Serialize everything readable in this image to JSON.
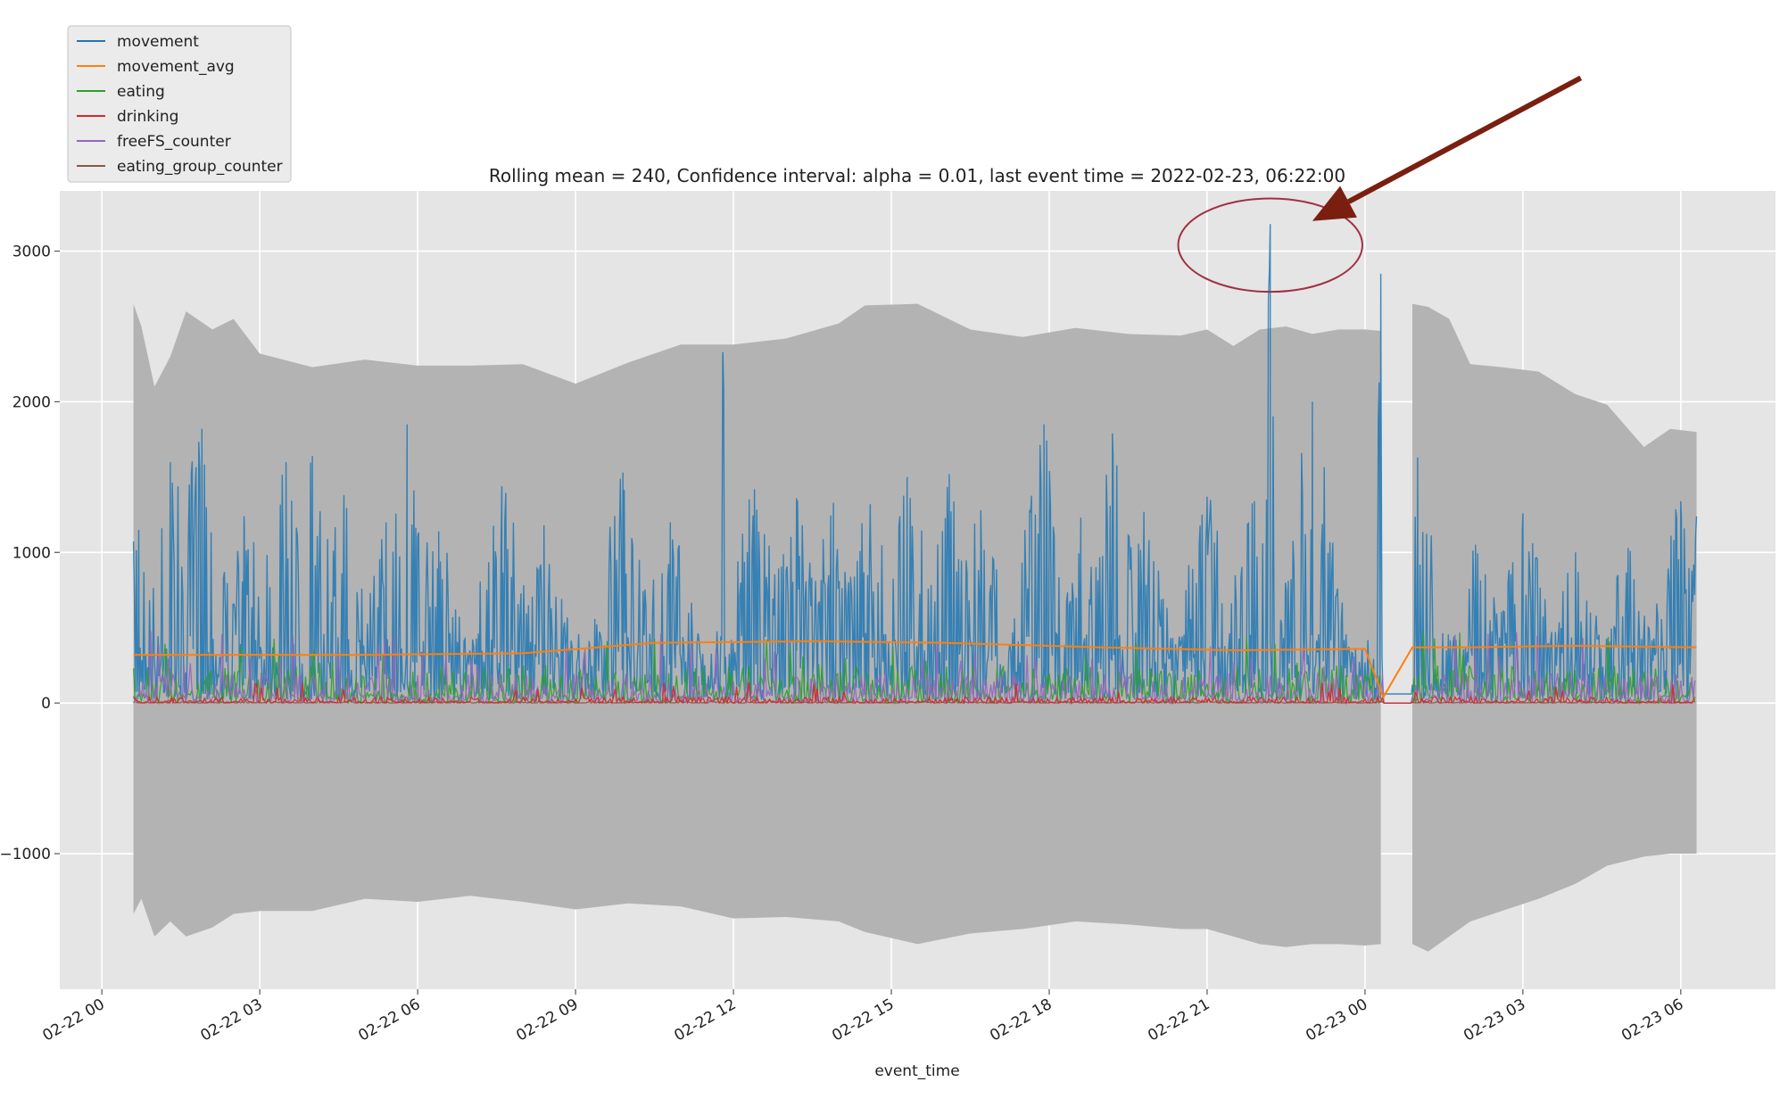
{
  "chart_data": {
    "type": "line",
    "title": "Rolling mean = 240, Confidence interval: alpha = 0.01, last event time = 2022-02-23, 06:22:00",
    "xlabel": "event_time",
    "ylabel": "",
    "x_ticks": [
      "02-22 00",
      "02-22 03",
      "02-22 06",
      "02-22 09",
      "02-22 12",
      "02-22 15",
      "02-22 18",
      "02-22 21",
      "02-23 00",
      "02-23 03",
      "02-23 06"
    ],
    "x_tick_hours": [
      0,
      3,
      6,
      9,
      12,
      15,
      18,
      21,
      24,
      27,
      30
    ],
    "xlim_hours": [
      -0.8,
      31.8
    ],
    "y_ticks": [
      3000,
      2000,
      1000,
      0,
      -1000
    ],
    "ylim": [
      -1900,
      3400
    ],
    "grid": true,
    "legend_position": "top-left, above plot",
    "series": [
      {
        "name": "movement",
        "color": "#1f77b4",
        "peaks": [
          [
            0.7,
            1150
          ],
          [
            1.3,
            1600
          ],
          [
            1.9,
            1820
          ],
          [
            2.7,
            1240
          ],
          [
            3.5,
            1600
          ],
          [
            4.0,
            1640
          ],
          [
            4.6,
            1380
          ],
          [
            5.4,
            1200
          ],
          [
            5.8,
            1850
          ],
          [
            6.4,
            1140
          ],
          [
            7.6,
            1440
          ],
          [
            8.4,
            1180
          ],
          [
            9.9,
            1530
          ],
          [
            10.8,
            1200
          ],
          [
            11.8,
            2330
          ],
          [
            12.4,
            1420
          ],
          [
            13.2,
            1360
          ],
          [
            13.9,
            1330
          ],
          [
            14.6,
            1320
          ],
          [
            15.3,
            1500
          ],
          [
            16.1,
            1520
          ],
          [
            16.7,
            1280
          ],
          [
            17.9,
            1850
          ],
          [
            18.6,
            1230
          ],
          [
            19.2,
            1790
          ],
          [
            19.8,
            1270
          ],
          [
            21.0,
            1370
          ],
          [
            21.9,
            1340
          ],
          [
            22.2,
            3180
          ],
          [
            23.0,
            2000
          ],
          [
            24.3,
            2850
          ],
          [
            25.0,
            1630
          ],
          [
            26.1,
            1050
          ],
          [
            27.0,
            1260
          ],
          [
            28.0,
            1000
          ],
          [
            29.0,
            1030
          ],
          [
            30.0,
            1340
          ],
          [
            30.3,
            1240
          ]
        ]
      },
      {
        "name": "movement_avg",
        "color": "#ff7f0e",
        "x": [
          0.6,
          2.5,
          5.0,
          8.0,
          10.5,
          13.5,
          16.0,
          19.0,
          21.5,
          24.0,
          24.35,
          24.9,
          26.0,
          28.0,
          30.3
        ],
        "y": [
          320,
          320,
          320,
          330,
          400,
          410,
          400,
          370,
          350,
          360,
          40,
          370,
          370,
          380,
          370
        ]
      },
      {
        "name": "eating",
        "color": "#2ca02c",
        "typical_max": 250,
        "max": 480
      },
      {
        "name": "drinking",
        "color": "#d62728",
        "typical_max": 40,
        "max": 140
      },
      {
        "name": "freeFS_counter",
        "color": "#9467bd",
        "typical_max": 200,
        "max": 480
      },
      {
        "name": "eating_group_counter",
        "color": "#8c564b",
        "typical_max": 10,
        "max": 30
      }
    ],
    "confidence_band": {
      "color": "#b3b3b3",
      "x": [
        0.6,
        0.75,
        1.0,
        1.3,
        1.6,
        2.1,
        2.5,
        3.0,
        4.0,
        5.0,
        6.0,
        7.0,
        8.0,
        9.0,
        10.0,
        11.0,
        12.0,
        13.0,
        14.0,
        14.5,
        15.5,
        16.5,
        17.5,
        18.5,
        19.5,
        20.5,
        21.0,
        21.5,
        22.0,
        22.5,
        23.0,
        23.5,
        24.0,
        24.3
      ],
      "upper": [
        2650,
        2500,
        2100,
        2300,
        2600,
        2480,
        2550,
        2320,
        2230,
        2280,
        2240,
        2240,
        2250,
        2120,
        2260,
        2380,
        2380,
        2420,
        2520,
        2640,
        2650,
        2480,
        2430,
        2490,
        2450,
        2440,
        2480,
        2370,
        2480,
        2500,
        2450,
        2480,
        2480,
        2470
      ],
      "lower": [
        -1400,
        -1300,
        -1550,
        -1450,
        -1550,
        -1490,
        -1400,
        -1380,
        -1380,
        -1300,
        -1320,
        -1280,
        -1320,
        -1370,
        -1330,
        -1350,
        -1430,
        -1420,
        -1450,
        -1520,
        -1600,
        -1530,
        -1500,
        -1450,
        -1470,
        -1500,
        -1500,
        -1550,
        -1600,
        -1620,
        -1600,
        -1600,
        -1610,
        -1600
      ],
      "x2": [
        24.9,
        25.2,
        25.6,
        26.0,
        26.6,
        27.3,
        28.0,
        28.6,
        29.3,
        29.8,
        30.3
      ],
      "upper2": [
        2650,
        2630,
        2550,
        2250,
        2230,
        2200,
        2050,
        1980,
        1700,
        1820,
        1800
      ],
      "lower2": [
        -1600,
        -1650,
        -1550,
        -1450,
        -1380,
        -1300,
        -1200,
        -1080,
        -1020,
        -1000,
        -1000
      ]
    },
    "annotations": [
      {
        "type": "ellipse",
        "color": "#a03045",
        "cx_hour": 22.2,
        "cy_value": 3040,
        "rx_hour": 1.75,
        "ry_value": 310
      },
      {
        "type": "arrow",
        "color": "#7a1f10",
        "from": [
          28.1,
          4150
        ],
        "to": [
          23.0,
          3200
        ]
      }
    ]
  }
}
